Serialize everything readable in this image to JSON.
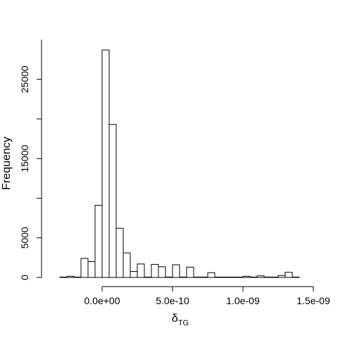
{
  "chart_data": {
    "type": "bar",
    "title": "",
    "xlabel": "δ",
    "xlabel_subscript": "TG",
    "ylabel": "Frequency",
    "xlim": [
      -3.5e-10,
      1.5e-09
    ],
    "ylim": [
      0,
      30000
    ],
    "bin_width": 5e-11,
    "bins_start": [
      -3e-10,
      -2.5e-10,
      -2e-10,
      -1.5e-10,
      -1e-10,
      -5e-11,
      0,
      5e-11,
      1e-10,
      1.5e-10,
      2e-10,
      2.5e-10,
      3e-10,
      3.5e-10,
      4e-10,
      4.5e-10,
      5e-10,
      5.5e-10,
      6e-10,
      6.5e-10,
      7e-10,
      7.5e-10,
      8e-10,
      8.5e-10,
      9e-10,
      9.5e-10,
      1e-09,
      1.05e-09,
      1.1e-09,
      1.15e-09,
      1.2e-09,
      1.25e-09,
      1.3e-09,
      1.35e-09
    ],
    "values": [
      50,
      150,
      50,
      2400,
      2000,
      9100,
      28700,
      19300,
      6200,
      3100,
      750,
      1700,
      50,
      1650,
      1350,
      50,
      1600,
      50,
      1300,
      50,
      50,
      600,
      50,
      50,
      50,
      50,
      150,
      50,
      200,
      50,
      50,
      250,
      650,
      50
    ],
    "x_ticks": [
      0,
      5e-10,
      1e-09,
      1.5e-09
    ],
    "x_tick_labels": [
      "0.0e+00",
      "5.0e-10",
      "1.0e-09",
      "1.5e-09"
    ],
    "y_ticks": [
      0,
      5000,
      15000,
      25000
    ],
    "y_tick_labels": [
      "0",
      "5000",
      "15000",
      "25000"
    ],
    "y_minor_ticks": [
      10000,
      20000
    ],
    "grid": false,
    "legend": "none"
  }
}
